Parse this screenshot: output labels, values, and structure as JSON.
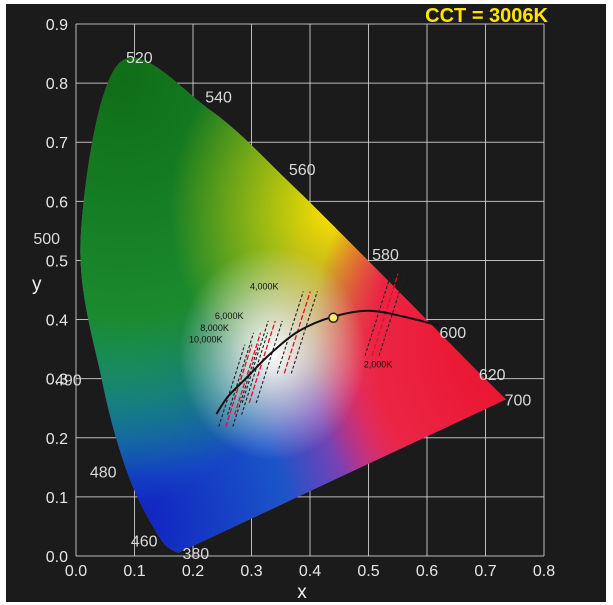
{
  "chart_data": {
    "type": "scatter",
    "title": "CCT = 3006K",
    "xlabel": "x",
    "ylabel": "y",
    "xlim": [
      0.0,
      0.8
    ],
    "ylim": [
      0.0,
      0.9
    ],
    "x_ticks": [
      "0.0",
      "0.1",
      "0.2",
      "0.3",
      "0.4",
      "0.5",
      "0.6",
      "0.7",
      "0.8"
    ],
    "y_ticks": [
      "0.0",
      "0.1",
      "0.2",
      "0.3",
      "0.4",
      "0.5",
      "0.6",
      "0.7",
      "0.8",
      "0.9"
    ],
    "grid": true,
    "spectral_locus": [
      {
        "label": "380",
        "x": 0.174,
        "y": 0.005
      },
      {
        "label": "460",
        "x": 0.144,
        "y": 0.03
      },
      {
        "label": "480",
        "x": 0.091,
        "y": 0.133
      },
      {
        "label": "490",
        "x": 0.045,
        "y": 0.295
      },
      {
        "label": "500",
        "x": 0.008,
        "y": 0.538
      },
      {
        "label": "520",
        "x": 0.074,
        "y": 0.834
      },
      {
        "label": "540",
        "x": 0.23,
        "y": 0.754
      },
      {
        "label": "560",
        "x": 0.373,
        "y": 0.624
      },
      {
        "label": "580",
        "x": 0.512,
        "y": 0.487
      },
      {
        "label": "600",
        "x": 0.627,
        "y": 0.372
      },
      {
        "label": "620",
        "x": 0.691,
        "y": 0.308
      },
      {
        "label": "700",
        "x": 0.735,
        "y": 0.265
      }
    ],
    "planckian_locus": [
      {
        "x": 0.24,
        "y": 0.24
      },
      {
        "x": 0.26,
        "y": 0.27
      },
      {
        "x": 0.29,
        "y": 0.3
      },
      {
        "x": 0.33,
        "y": 0.34
      },
      {
        "x": 0.38,
        "y": 0.38
      },
      {
        "x": 0.44,
        "y": 0.405
      },
      {
        "x": 0.5,
        "y": 0.415
      },
      {
        "x": 0.56,
        "y": 0.405
      },
      {
        "x": 0.62,
        "y": 0.39
      }
    ],
    "cct_markers": [
      {
        "label": "10,000K",
        "x": 0.28,
        "y": 0.29
      },
      {
        "label": "8,000K",
        "x": 0.295,
        "y": 0.31
      },
      {
        "label": "6,000K",
        "x": 0.32,
        "y": 0.33
      },
      {
        "label": "4,000K",
        "x": 0.38,
        "y": 0.38
      },
      {
        "label": "2,000K",
        "x": 0.53,
        "y": 0.41
      }
    ],
    "measured_point": {
      "x": 0.44,
      "y": 0.403
    }
  }
}
